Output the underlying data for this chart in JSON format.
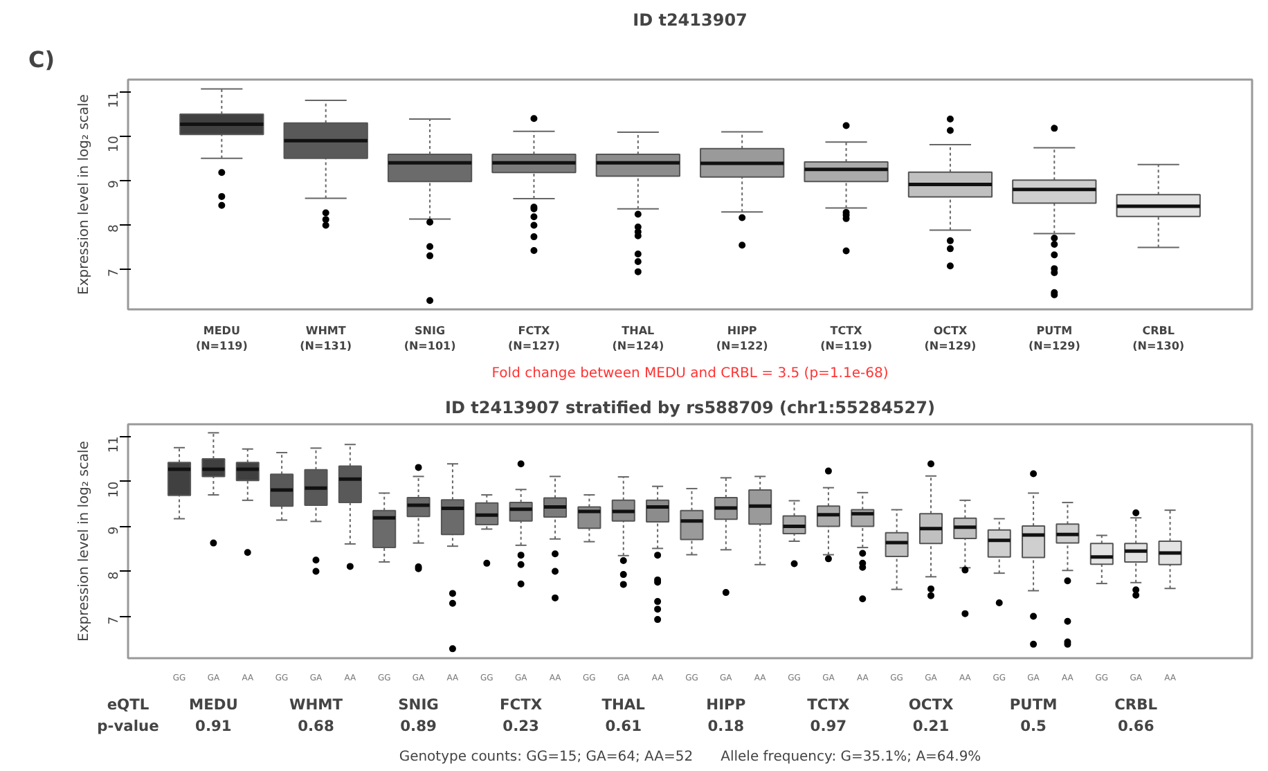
{
  "chart_data": [
    {
      "type": "box",
      "title": "ID t2413907",
      "ylabel": "Expression level in log₂ scale",
      "ylim": [
        6.08,
        11.27
      ],
      "yticks": [
        7,
        8,
        9,
        10,
        11
      ],
      "grid": false,
      "categories": [
        "MEDU\n(N=119)",
        "WHMT\n(N=131)",
        "SNIG\n(N=101)",
        "FCTX\n(N=127)",
        "THAL\n(N=124)",
        "HIPP\n(N=122)",
        "TCTX\n(N=119)",
        "OCTX\n(N=129)",
        "PUTM\n(N=129)",
        "CRBL\n(N=130)"
      ],
      "colors": [
        "#404040",
        "#595959",
        "#6b6b6b",
        "#7b7b7b",
        "#8c8c8c",
        "#9a9a9a",
        "#ababab",
        "#c0c0c0",
        "#cfcfcf",
        "#e3e3e3"
      ],
      "boxes": [
        {
          "low": 9.49,
          "q1": 10.03,
          "median": 10.26,
          "q3": 10.49,
          "high": 11.06,
          "outliers": [
            9.17,
            8.63,
            8.43
          ]
        },
        {
          "low": 8.59,
          "q1": 9.49,
          "median": 9.89,
          "q3": 10.29,
          "high": 10.8,
          "outliers": [
            8.26,
            8.11,
            7.98
          ]
        },
        {
          "low": 8.12,
          "q1": 8.97,
          "median": 9.39,
          "q3": 9.58,
          "high": 10.38,
          "outliers": [
            8.05,
            7.5,
            7.29,
            6.28
          ]
        },
        {
          "low": 8.58,
          "q1": 9.17,
          "median": 9.39,
          "q3": 9.58,
          "high": 10.1,
          "outliers": [
            10.39,
            8.39,
            8.35,
            8.17,
            7.98,
            7.72,
            7.41
          ]
        },
        {
          "low": 8.35,
          "q1": 9.09,
          "median": 9.39,
          "q3": 9.58,
          "high": 10.08,
          "outliers": [
            8.23,
            7.94,
            7.83,
            7.74,
            7.33,
            7.16,
            6.93
          ]
        },
        {
          "low": 8.28,
          "q1": 9.07,
          "median": 9.38,
          "q3": 9.71,
          "high": 10.09,
          "outliers": [
            8.15,
            7.53
          ]
        },
        {
          "low": 8.37,
          "q1": 8.97,
          "median": 9.24,
          "q3": 9.41,
          "high": 9.86,
          "outliers": [
            10.23,
            8.27,
            8.21,
            8.13,
            7.4
          ]
        },
        {
          "low": 7.87,
          "q1": 8.62,
          "median": 8.9,
          "q3": 9.18,
          "high": 9.8,
          "outliers": [
            10.38,
            10.12,
            7.63,
            7.45,
            7.06
          ]
        },
        {
          "low": 7.79,
          "q1": 8.48,
          "median": 8.79,
          "q3": 9.0,
          "high": 9.73,
          "outliers": [
            10.17,
            7.69,
            7.55,
            7.31,
            7.0,
            6.91,
            6.46,
            6.41
          ]
        },
        {
          "low": 7.48,
          "q1": 8.18,
          "median": 8.41,
          "q3": 8.67,
          "high": 9.35
        }
      ],
      "annotations": [
        "C)",
        "Fold change between MEDU and CRBL = 3.5 (p=1.1e-68)"
      ]
    },
    {
      "type": "box",
      "title": "ID t2413907 stratified by rs588709 (chr1:55284527)",
      "ylabel": "Expression level in log₂ scale",
      "ylim": [
        6.07,
        11.27
      ],
      "yticks": [
        7,
        8,
        9,
        10,
        11
      ],
      "grid": false,
      "categories": [
        "GG",
        "GA",
        "AA",
        "GG",
        "GA",
        "AA",
        "GG",
        "GA",
        "AA",
        "GG",
        "GA",
        "AA",
        "GG",
        "GA",
        "AA",
        "GG",
        "GA",
        "AA",
        "GG",
        "GA",
        "AA",
        "GG",
        "GA",
        "AA",
        "GG",
        "GA",
        "AA",
        "GG",
        "GA",
        "AA"
      ],
      "colors": [
        "#404040",
        "#404040",
        "#404040",
        "#595959",
        "#595959",
        "#595959",
        "#6b6b6b",
        "#6b6b6b",
        "#6b6b6b",
        "#7b7b7b",
        "#7b7b7b",
        "#7b7b7b",
        "#8c8c8c",
        "#8c8c8c",
        "#8c8c8c",
        "#9a9a9a",
        "#9a9a9a",
        "#9a9a9a",
        "#ababab",
        "#ababab",
        "#ababab",
        "#c0c0c0",
        "#c0c0c0",
        "#c0c0c0",
        "#cfcfcf",
        "#cfcfcf",
        "#cfcfcf",
        "#e3e3e3",
        "#e3e3e3",
        "#e3e3e3"
      ],
      "boxes": [
        {
          "low": 9.17,
          "q1": 9.69,
          "median": 10.27,
          "q3": 10.42,
          "high": 10.75
        },
        {
          "low": 9.7,
          "q1": 10.11,
          "median": 10.27,
          "q3": 10.5,
          "high": 11.08,
          "outliers": [
            8.63
          ]
        },
        {
          "low": 9.58,
          "q1": 10.02,
          "median": 10.27,
          "q3": 10.42,
          "high": 10.72,
          "outliers": [
            8.42
          ]
        },
        {
          "low": 9.14,
          "q1": 9.45,
          "median": 9.81,
          "q3": 10.16,
          "high": 10.64
        },
        {
          "low": 9.11,
          "q1": 9.47,
          "median": 9.85,
          "q3": 10.26,
          "high": 10.74,
          "outliers": [
            8.25,
            8.0
          ]
        },
        {
          "low": 8.61,
          "q1": 9.53,
          "median": 10.05,
          "q3": 10.34,
          "high": 10.82,
          "outliers": [
            8.11
          ]
        },
        {
          "low": 8.21,
          "q1": 8.53,
          "median": 9.19,
          "q3": 9.35,
          "high": 9.74
        },
        {
          "low": 8.63,
          "q1": 9.22,
          "median": 9.47,
          "q3": 9.64,
          "high": 10.11,
          "outliers": [
            10.31,
            8.1,
            8.06
          ]
        },
        {
          "low": 8.56,
          "q1": 8.82,
          "median": 9.4,
          "q3": 9.59,
          "high": 10.39,
          "outliers": [
            7.51,
            7.29,
            6.28
          ]
        },
        {
          "low": 8.94,
          "q1": 9.04,
          "median": 9.25,
          "q3": 9.52,
          "high": 9.7,
          "outliers": [
            8.18
          ]
        },
        {
          "low": 8.58,
          "q1": 9.12,
          "median": 9.38,
          "q3": 9.53,
          "high": 9.82,
          "outliers": [
            10.39,
            8.36,
            8.15,
            7.72
          ]
        },
        {
          "low": 8.72,
          "q1": 9.21,
          "median": 9.43,
          "q3": 9.63,
          "high": 10.11,
          "outliers": [
            8.39,
            8.0,
            7.41
          ]
        },
        {
          "low": 8.66,
          "q1": 8.96,
          "median": 9.33,
          "q3": 9.43,
          "high": 9.7
        },
        {
          "low": 8.35,
          "q1": 9.12,
          "median": 9.33,
          "q3": 9.58,
          "high": 10.1,
          "outliers": [
            8.24,
            7.93,
            7.71
          ]
        },
        {
          "low": 8.51,
          "q1": 9.1,
          "median": 9.43,
          "q3": 9.58,
          "high": 9.89,
          "outliers": [
            8.36,
            7.81,
            7.76,
            7.33,
            7.16,
            6.93
          ]
        },
        {
          "low": 8.37,
          "q1": 8.71,
          "median": 9.12,
          "q3": 9.35,
          "high": 9.84
        },
        {
          "low": 8.48,
          "q1": 9.16,
          "median": 9.41,
          "q3": 9.64,
          "high": 10.08,
          "outliers": [
            7.53
          ]
        },
        {
          "low": 8.15,
          "q1": 9.05,
          "median": 9.45,
          "q3": 9.81,
          "high": 10.11
        },
        {
          "low": 8.67,
          "q1": 8.84,
          "median": 9.0,
          "q3": 9.23,
          "high": 9.57,
          "outliers": [
            8.17
          ]
        },
        {
          "low": 8.37,
          "q1": 9.0,
          "median": 9.26,
          "q3": 9.45,
          "high": 9.86,
          "outliers": [
            10.23,
            8.28
          ]
        },
        {
          "low": 8.53,
          "q1": 9.0,
          "median": 9.28,
          "q3": 9.37,
          "high": 9.75,
          "outliers": [
            8.4,
            8.18,
            8.09,
            7.39
          ]
        },
        {
          "low": 7.6,
          "q1": 8.33,
          "median": 8.64,
          "q3": 8.86,
          "high": 9.37
        },
        {
          "low": 7.88,
          "q1": 8.62,
          "median": 8.95,
          "q3": 9.28,
          "high": 10.12,
          "outliers": [
            10.39,
            7.61,
            7.46
          ]
        },
        {
          "low": 8.08,
          "q1": 8.73,
          "median": 8.98,
          "q3": 9.18,
          "high": 9.58,
          "outliers": [
            8.03,
            7.06
          ]
        },
        {
          "low": 7.96,
          "q1": 8.32,
          "median": 8.69,
          "q3": 8.92,
          "high": 9.17,
          "outliers": [
            7.3
          ]
        },
        {
          "low": 7.57,
          "q1": 8.31,
          "median": 8.81,
          "q3": 9.01,
          "high": 9.74,
          "outliers": [
            10.17,
            7.0,
            6.38
          ]
        },
        {
          "low": 8.02,
          "q1": 8.63,
          "median": 8.82,
          "q3": 9.05,
          "high": 9.53,
          "outliers": [
            7.79,
            6.89,
            6.43,
            6.38
          ]
        },
        {
          "low": 7.73,
          "q1": 8.16,
          "median": 8.32,
          "q3": 8.62,
          "high": 8.8
        },
        {
          "low": 7.75,
          "q1": 8.21,
          "median": 8.45,
          "q3": 8.62,
          "high": 9.19,
          "outliers": [
            9.3,
            7.59,
            7.47
          ]
        },
        {
          "low": 7.62,
          "q1": 8.15,
          "median": 8.41,
          "q3": 8.67,
          "high": 9.36
        }
      ],
      "annotations": [
        "eQTL\np-value",
        "MEDU\n0.91",
        "WHMT\n0.68",
        "SNIG\n0.89",
        "FCTX\n0.23",
        "THAL\n0.61",
        "HIPP\n0.18",
        "TCTX\n0.97",
        "OCTX\n0.21",
        "PUTM\n0.5",
        "CRBL\n0.66",
        "Genotype counts: GG=15; GA=64; AA=52",
        "Allele frequency: G=35.1%; A=64.9%"
      ]
    }
  ]
}
